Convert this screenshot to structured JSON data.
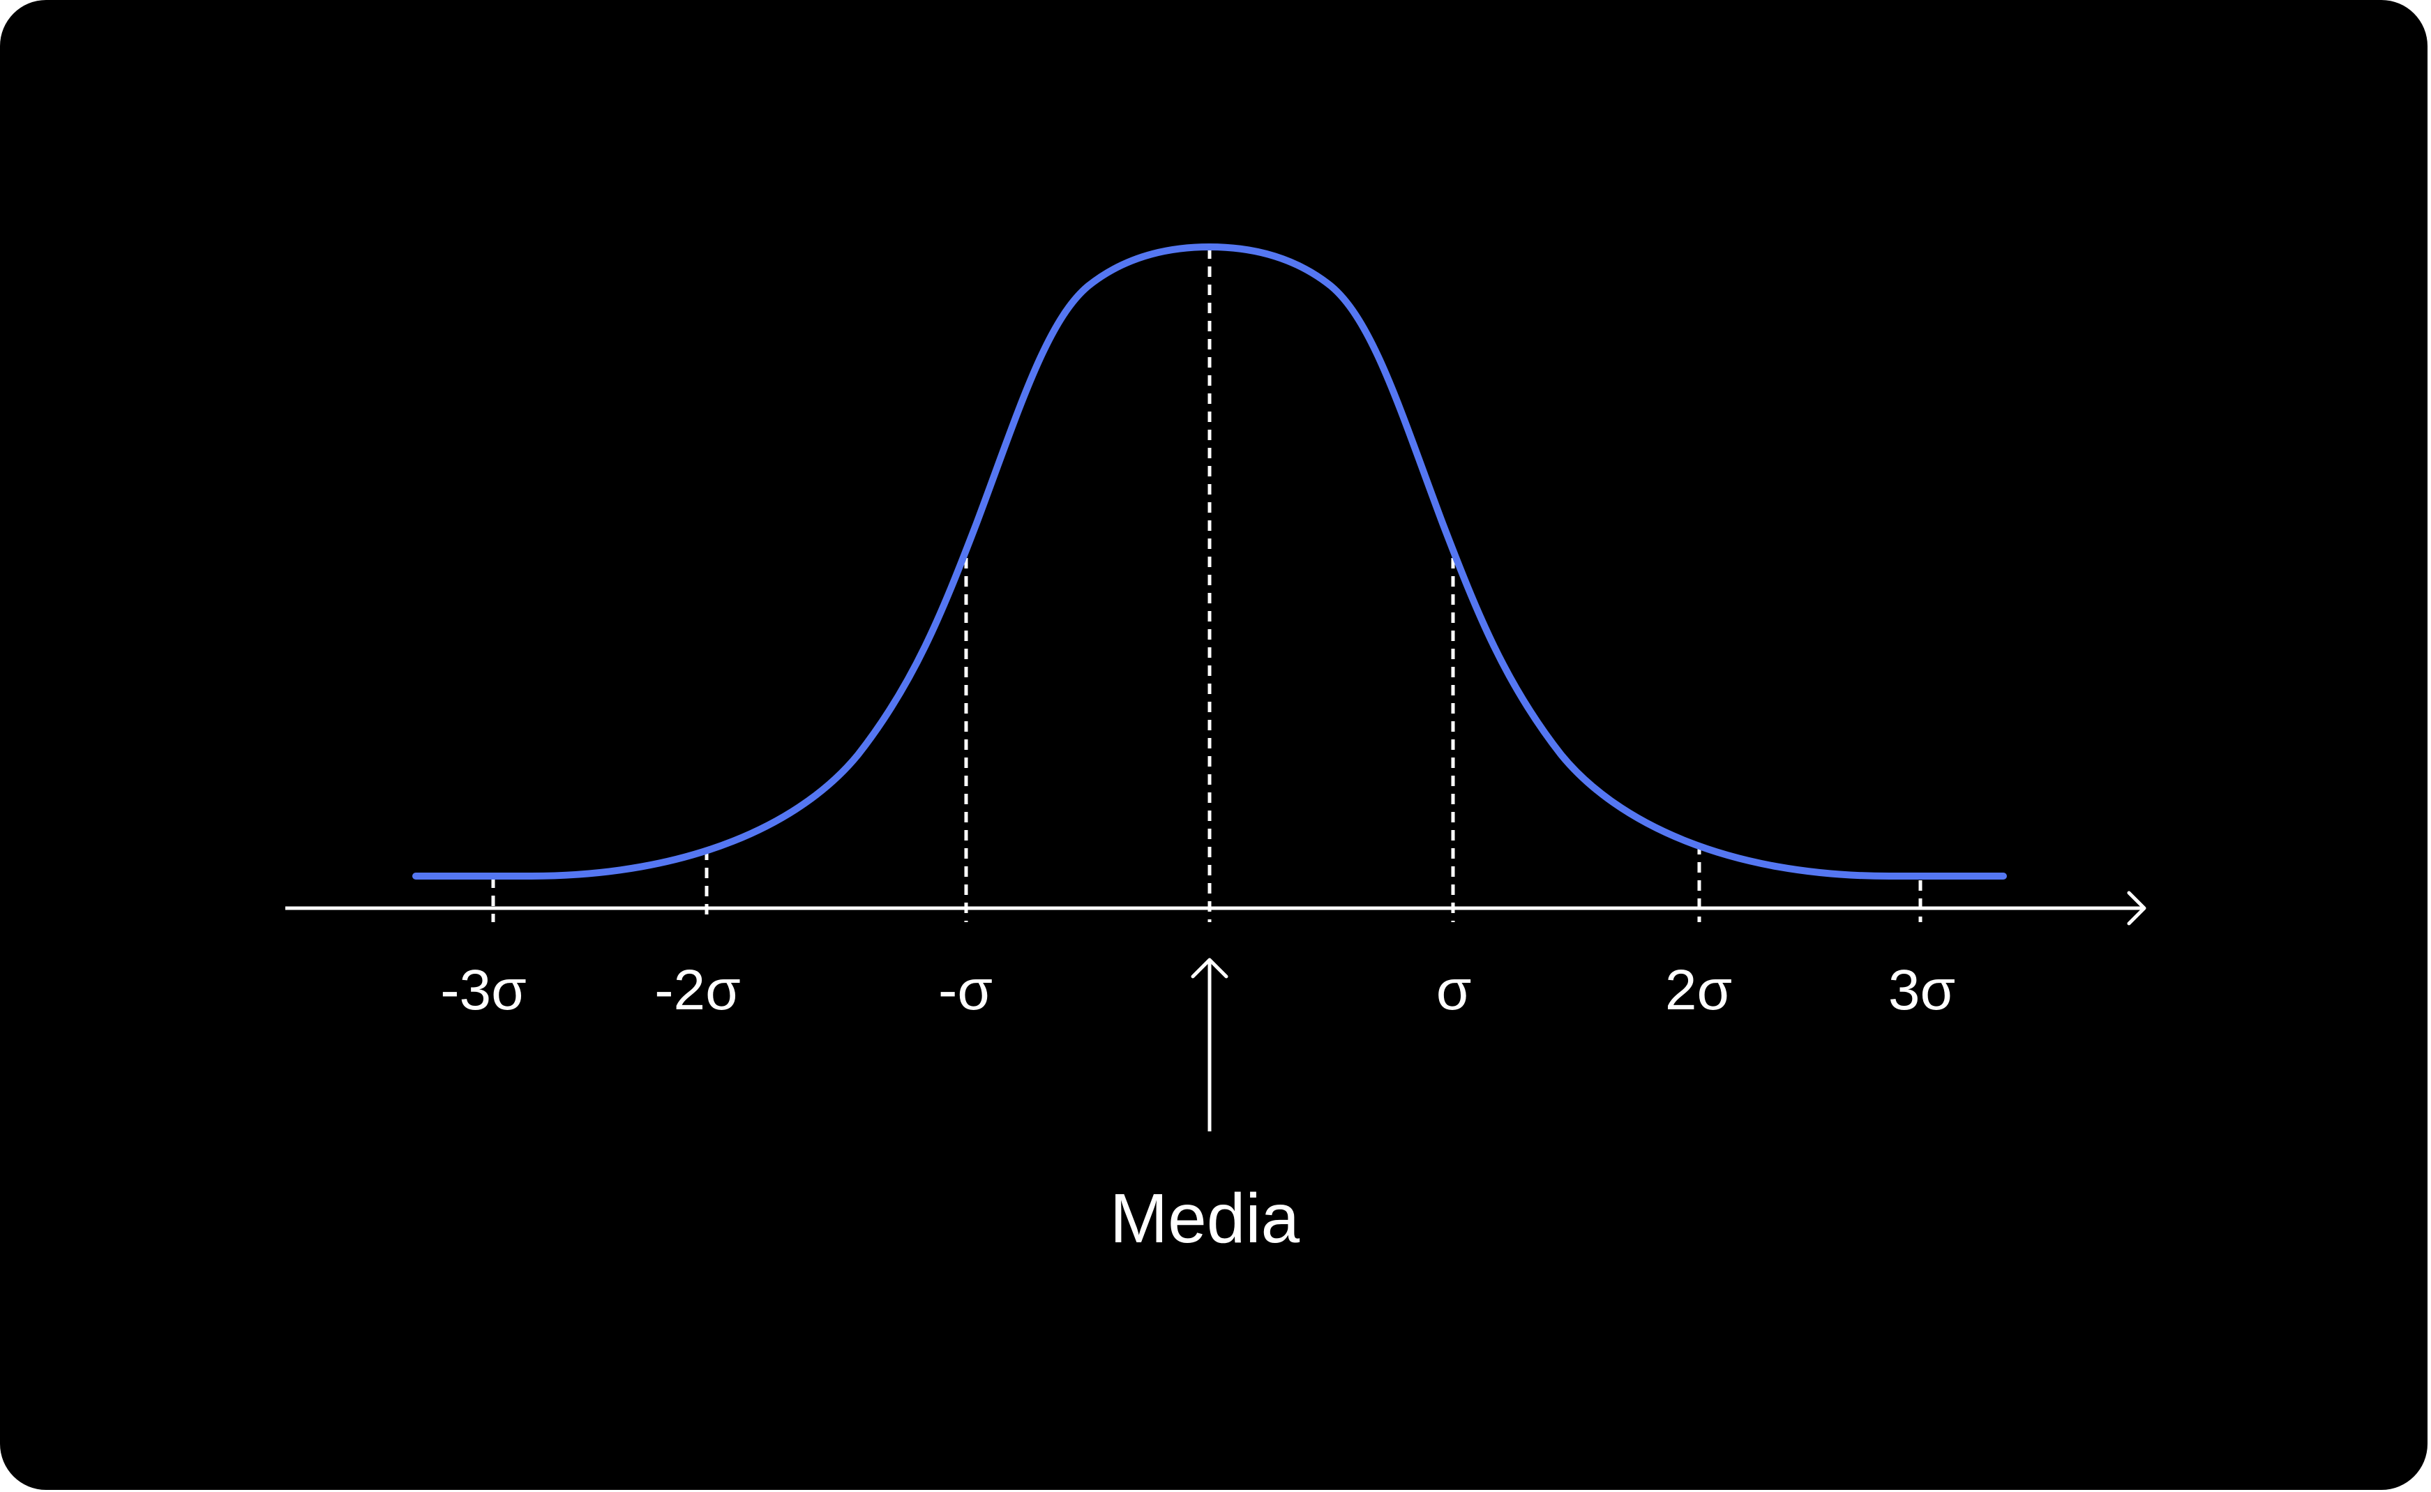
{
  "diagram": {
    "caption": "Media",
    "tick_labels": [
      "-3σ",
      "-2σ",
      "-σ",
      "σ",
      "2σ",
      "3σ"
    ],
    "colors": {
      "background": "#000000",
      "curve": "#5577f2",
      "axis": "#ffffff"
    }
  }
}
